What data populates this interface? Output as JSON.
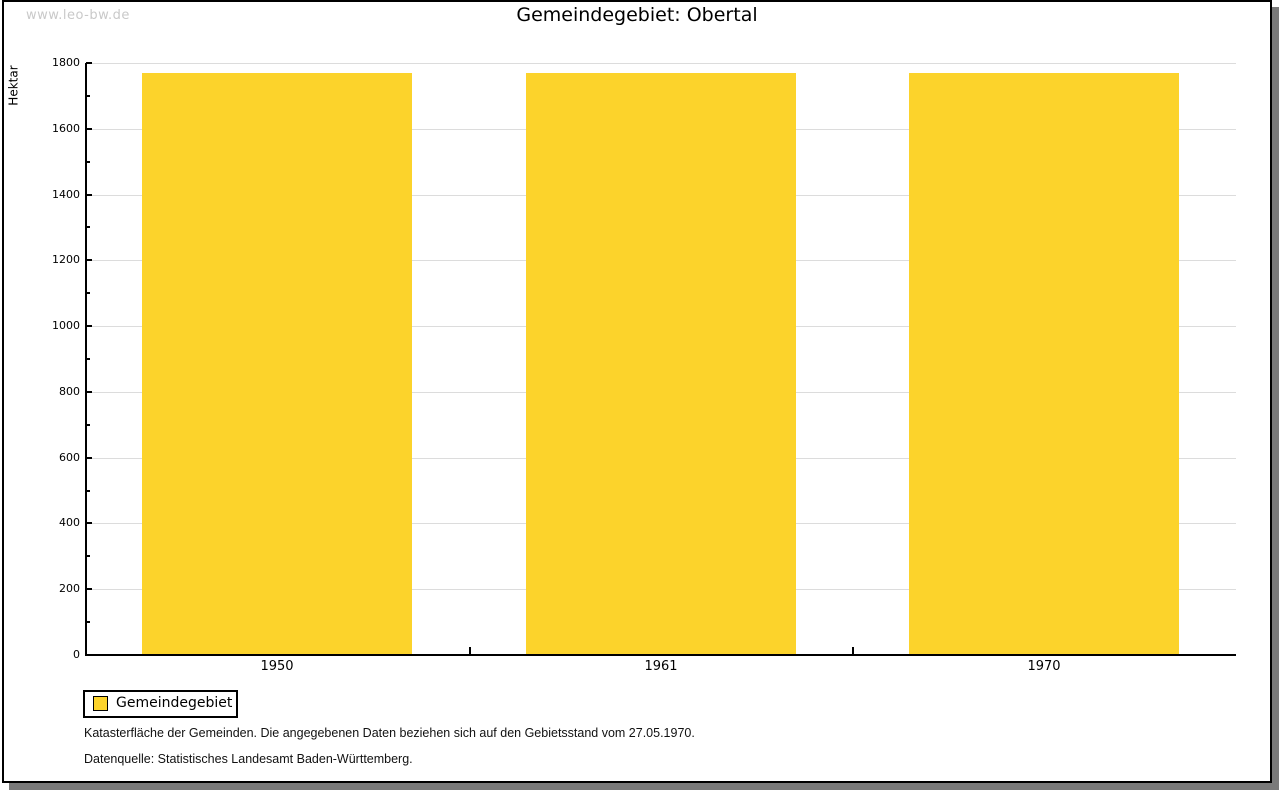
{
  "watermark": "www.leo-bw.de",
  "title": "Gemeindegebiet: Obertal",
  "chart_data": {
    "type": "bar",
    "title": "Gemeindegebiet: Obertal",
    "categories": [
      "1950",
      "1961",
      "1970"
    ],
    "series": [
      {
        "name": "Gemeindegebiet",
        "values": [
          1770,
          1770,
          1770
        ]
      }
    ],
    "xlabel": "",
    "ylabel": "Hektar",
    "ylim": [
      0,
      1800
    ],
    "ytick_step": 200,
    "ytick_minor_step": 100,
    "ytick_labels": [
      "0",
      "200",
      "400",
      "600",
      "800",
      "1000",
      "1200",
      "1400",
      "1600",
      "1800"
    ],
    "grid": true,
    "legend_position": "bottom-left",
    "bar_color": "#fcd32b"
  },
  "legend": {
    "items": [
      {
        "label": "Gemeindegebiet",
        "color": "#fcd32b"
      }
    ]
  },
  "footnotes": [
    "Katasterfläche der Gemeinden. Die angegebenen Daten beziehen sich auf den Gebietsstand vom 27.05.1970.",
    "Datenquelle: Statistisches Landesamt Baden-Württemberg."
  ],
  "colors": {
    "bar": "#fcd32b",
    "gridline": "#dcdcdc",
    "axis": "#000000",
    "watermark": "#c9c9c9",
    "frame_shadow": "#7a7a7a",
    "background": "#ffffff"
  }
}
